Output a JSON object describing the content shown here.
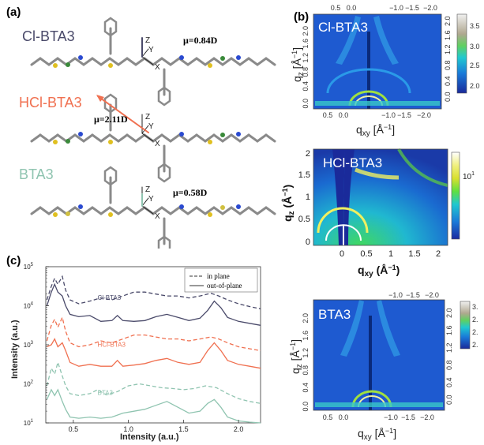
{
  "panel_a": {
    "label": "(a)",
    "molecules": [
      {
        "name": "Cl-BTA3",
        "color": "#4a4a6a",
        "dipole": "μ=0.84D"
      },
      {
        "name": "HCl-BTA3",
        "color": "#f07050",
        "dipole": "μ=2.11D"
      },
      {
        "name": "BTA3",
        "color": "#8fc4b0",
        "dipole": "μ=0.58D"
      }
    ],
    "axes": {
      "z": "Z",
      "y": "Y",
      "x": "X"
    }
  },
  "panel_b": {
    "label": "(b)",
    "maps": [
      {
        "name": "Cl-BTA3",
        "top_ticks": [
          "0.5",
          "0.0",
          "−1.0",
          "−1.5",
          "−2.0"
        ],
        "bottom_ticks": [
          "0.5",
          "0.0",
          "−1.0",
          "−1.5",
          "−2.0"
        ],
        "left_ticks": [
          "2.0",
          "1.6",
          "1.2",
          "0.8",
          "0.4",
          "0.0"
        ],
        "right_ticks": [
          "0.0",
          "0.4",
          "0.8",
          "1.2",
          "1.6",
          "2.0"
        ],
        "colorbar_ticks": [
          "3.5",
          "3.0",
          "2.5",
          "2.0"
        ],
        "ylabel": "q",
        "ysub": "z",
        "yunit": " [Å",
        "yexp": "−1",
        "yclose": "]",
        "xlabel": "q",
        "xsub": "xy",
        "xunit": " [Å",
        "xexp": "−1",
        "xclose": "]"
      },
      {
        "name": "HCl-BTA3",
        "bottom_ticks": [
          "0",
          "0.5",
          "1",
          "1.5",
          "2"
        ],
        "left_ticks": [
          "2",
          "1.5",
          "1",
          "0.5",
          "0"
        ],
        "colorbar_tick": "10",
        "colorbar_exp": "1",
        "ylabel": "q",
        "ysub": "z",
        "yunit": " (Å",
        "yexp": "−1",
        "yclose": ")",
        "xlabel": "q",
        "xsub": "xy",
        "xunit": " (Å",
        "xexp": "−1",
        "xclose": ")"
      },
      {
        "name": "BTA3",
        "top_ticks": [
          "−1.0",
          "−1.5",
          "−2.0"
        ],
        "bottom_ticks": [
          "0.5",
          "0.0",
          "−1.0",
          "−1.5",
          "−2.0"
        ],
        "left_ticks": [
          "2.0",
          "1.6",
          "1.2",
          "0.8",
          "0.4",
          "0.0"
        ],
        "right_ticks": [
          "0.0",
          "0.4",
          "0.8",
          "1.2",
          "1.6",
          "2.0"
        ],
        "colorbar_ticks": [
          "3.",
          "2.",
          "2.",
          "2."
        ],
        "ylabel": "q",
        "ysub": "z",
        "yunit": " [Å",
        "yexp": "−1",
        "yclose": "]",
        "xlabel": "q",
        "xsub": "xy",
        "xunit": " [Å",
        "xexp": "−1",
        "xclose": "]"
      }
    ],
    "colormap": [
      "#1a2a9a",
      "#1a7ad8",
      "#20c8d0",
      "#40e040",
      "#c8e020",
      "#f0e060",
      "#ffffff"
    ]
  },
  "panel_c": {
    "label": "(c)",
    "chart_data": {
      "type": "line",
      "xlabel": "Intensity (a.u.)",
      "ylabel": "Intensity (a.u.)",
      "xlim": [
        0.25,
        2.2
      ],
      "ylim_log": [
        1,
        3
      ],
      "x_ticks": [
        "0.5",
        "1.0",
        "1.5",
        "2.0"
      ],
      "y_ticks": [
        {
          "base": "10",
          "exp": "1"
        },
        {
          "base": "10",
          "exp": "2"
        },
        {
          "base": "10",
          "exp": "3"
        },
        {
          "base": "10",
          "exp": "4"
        },
        {
          "base": "10",
          "exp": "5"
        }
      ],
      "legend": {
        "in_plane": "in plane",
        "out_of_plane": "out-of-plane"
      },
      "series": [
        {
          "name": "Cl-BTA3",
          "color": "#4a4a6a",
          "label_x": 0.72,
          "label_decade": 4.15,
          "in_plane": [
            [
              0.26,
              4.15
            ],
            [
              0.3,
              4.5
            ],
            [
              0.33,
              4.7
            ],
            [
              0.36,
              4.55
            ],
            [
              0.4,
              4.75
            ],
            [
              0.43,
              4.4
            ],
            [
              0.47,
              4.15
            ],
            [
              0.55,
              4.05
            ],
            [
              0.65,
              4.12
            ],
            [
              0.75,
              4.2
            ],
            [
              0.85,
              4.15
            ],
            [
              0.95,
              4.25
            ],
            [
              1.05,
              4.35
            ],
            [
              1.15,
              4.35
            ],
            [
              1.25,
              4.3
            ],
            [
              1.35,
              4.25
            ],
            [
              1.45,
              4.25
            ],
            [
              1.55,
              4.2
            ],
            [
              1.65,
              4.25
            ],
            [
              1.75,
              4.32
            ],
            [
              1.82,
              4.25
            ],
            [
              1.9,
              4.15
            ],
            [
              2.0,
              4.05
            ],
            [
              2.1,
              3.98
            ],
            [
              2.2,
              3.92
            ]
          ],
          "out_plane": [
            [
              0.26,
              4.0
            ],
            [
              0.3,
              4.35
            ],
            [
              0.33,
              4.55
            ],
            [
              0.36,
              4.35
            ],
            [
              0.4,
              4.25
            ],
            [
              0.43,
              4.0
            ],
            [
              0.47,
              3.78
            ],
            [
              0.55,
              3.72
            ],
            [
              0.65,
              3.75
            ],
            [
              0.75,
              3.6
            ],
            [
              0.85,
              3.62
            ],
            [
              0.9,
              3.75
            ],
            [
              0.95,
              3.62
            ],
            [
              1.05,
              3.6
            ],
            [
              1.15,
              3.62
            ],
            [
              1.25,
              3.72
            ],
            [
              1.35,
              3.78
            ],
            [
              1.45,
              3.7
            ],
            [
              1.55,
              3.62
            ],
            [
              1.65,
              3.68
            ],
            [
              1.72,
              3.88
            ],
            [
              1.78,
              4.12
            ],
            [
              1.84,
              3.95
            ],
            [
              1.9,
              3.7
            ],
            [
              2.0,
              3.6
            ],
            [
              2.1,
              3.55
            ],
            [
              2.2,
              3.5
            ]
          ]
        },
        {
          "name": "HCl-BTA3",
          "color": "#f07050",
          "label_x": 0.72,
          "label_decade": 2.95,
          "in_plane": [
            [
              0.26,
              3.1
            ],
            [
              0.3,
              3.5
            ],
            [
              0.33,
              3.65
            ],
            [
              0.36,
              3.45
            ],
            [
              0.4,
              3.7
            ],
            [
              0.43,
              3.35
            ],
            [
              0.47,
              3.05
            ],
            [
              0.55,
              2.95
            ],
            [
              0.65,
              3.0
            ],
            [
              0.75,
              3.1
            ],
            [
              0.85,
              3.05
            ],
            [
              0.95,
              3.15
            ],
            [
              1.05,
              3.25
            ],
            [
              1.15,
              3.25
            ],
            [
              1.25,
              3.2
            ],
            [
              1.35,
              3.15
            ],
            [
              1.45,
              3.15
            ],
            [
              1.55,
              3.1
            ],
            [
              1.65,
              3.15
            ],
            [
              1.75,
              3.2
            ],
            [
              1.82,
              3.15
            ],
            [
              1.9,
              3.05
            ],
            [
              2.0,
              2.95
            ],
            [
              2.1,
              2.9
            ],
            [
              2.2,
              2.85
            ]
          ],
          "out_plane": [
            [
              0.26,
              2.95
            ],
            [
              0.3,
              3.0
            ],
            [
              0.33,
              3.15
            ],
            [
              0.36,
              2.95
            ],
            [
              0.4,
              3.05
            ],
            [
              0.43,
              2.85
            ],
            [
              0.47,
              2.55
            ],
            [
              0.55,
              2.45
            ],
            [
              0.65,
              2.5
            ],
            [
              0.75,
              2.45
            ],
            [
              0.85,
              2.45
            ],
            [
              0.9,
              2.6
            ],
            [
              0.95,
              2.45
            ],
            [
              1.05,
              2.48
            ],
            [
              1.15,
              2.52
            ],
            [
              1.25,
              2.6
            ],
            [
              1.35,
              2.65
            ],
            [
              1.45,
              2.55
            ],
            [
              1.55,
              2.5
            ],
            [
              1.65,
              2.55
            ],
            [
              1.72,
              2.85
            ],
            [
              1.78,
              3.05
            ],
            [
              1.84,
              2.85
            ],
            [
              1.9,
              2.6
            ],
            [
              2.0,
              2.5
            ],
            [
              2.1,
              2.45
            ],
            [
              2.2,
              2.4
            ]
          ]
        },
        {
          "name": "BTA3",
          "color": "#8fc4b0",
          "label_x": 0.72,
          "label_decade": 1.72,
          "in_plane": [
            [
              0.26,
              1.95
            ],
            [
              0.3,
              2.4
            ],
            [
              0.33,
              2.25
            ],
            [
              0.36,
              2.55
            ],
            [
              0.4,
              2.2
            ],
            [
              0.43,
              1.95
            ],
            [
              0.47,
              1.75
            ],
            [
              0.55,
              1.7
            ],
            [
              0.65,
              1.75
            ],
            [
              0.72,
              1.85
            ],
            [
              0.8,
              1.72
            ],
            [
              0.9,
              1.8
            ],
            [
              1.0,
              1.95
            ],
            [
              1.1,
              2.0
            ],
            [
              1.2,
              1.95
            ],
            [
              1.3,
              1.9
            ],
            [
              1.4,
              1.88
            ],
            [
              1.5,
              1.85
            ],
            [
              1.6,
              1.88
            ],
            [
              1.7,
              1.95
            ],
            [
              1.8,
              1.9
            ],
            [
              1.9,
              1.75
            ],
            [
              2.0,
              1.62
            ],
            [
              2.1,
              1.55
            ],
            [
              2.2,
              1.5
            ]
          ],
          "out_plane": [
            [
              0.26,
              1.6
            ],
            [
              0.3,
              1.85
            ],
            [
              0.33,
              1.7
            ],
            [
              0.36,
              1.85
            ],
            [
              0.4,
              1.55
            ],
            [
              0.43,
              1.35
            ],
            [
              0.47,
              1.15
            ],
            [
              0.55,
              1.12
            ],
            [
              0.65,
              1.15
            ],
            [
              0.75,
              1.12
            ],
            [
              0.85,
              1.15
            ],
            [
              0.95,
              1.25
            ],
            [
              1.05,
              1.3
            ],
            [
              1.15,
              1.35
            ],
            [
              1.25,
              1.45
            ],
            [
              1.35,
              1.55
            ],
            [
              1.45,
              1.4
            ],
            [
              1.55,
              1.25
            ],
            [
              1.65,
              1.3
            ],
            [
              1.72,
              1.5
            ],
            [
              1.78,
              1.6
            ],
            [
              1.84,
              1.4
            ],
            [
              1.9,
              1.15
            ],
            [
              2.0,
              1.05
            ],
            [
              2.1,
              1.02
            ],
            [
              2.2,
              1.0
            ]
          ]
        }
      ]
    }
  }
}
